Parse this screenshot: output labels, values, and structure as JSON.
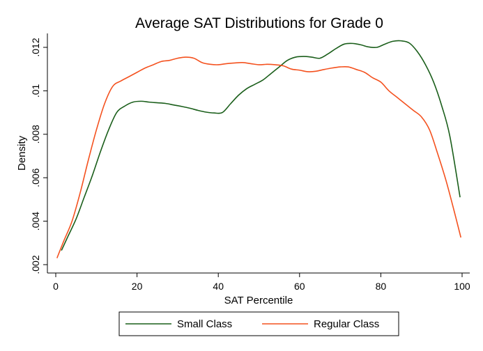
{
  "chart_data": {
    "type": "line",
    "title": "Average SAT Distributions for Grade 0",
    "xlabel": "SAT Percentile",
    "ylabel": "Density",
    "xlim": [
      0,
      100
    ],
    "ylim": [
      0.002,
      0.0123
    ],
    "xticks": [
      0,
      20,
      40,
      60,
      80,
      100
    ],
    "xtick_labels": [
      "0",
      "20",
      "40",
      "60",
      "80",
      "100"
    ],
    "yticks": [
      0.002,
      0.004,
      0.006,
      0.008,
      0.01,
      0.012
    ],
    "ytick_labels": [
      ".002",
      ".004",
      ".006",
      ".008",
      ".01",
      ".012"
    ],
    "grid": false,
    "legend_position": "bottom",
    "series": [
      {
        "name": "Small Class",
        "color": "#1a5e1a",
        "x": [
          1.4,
          3,
          5,
          7,
          9,
          11,
          13,
          15,
          17,
          19,
          21,
          23,
          25,
          27,
          29,
          31,
          33,
          35,
          37,
          39,
          41,
          43,
          45,
          47,
          49,
          51,
          53,
          55,
          57,
          59,
          61,
          63,
          65,
          67,
          69,
          71,
          73,
          75,
          77,
          79,
          81,
          83,
          85,
          87,
          89,
          91,
          93,
          95,
          97,
          99.5
        ],
        "values": [
          0.00265,
          0.0033,
          0.0041,
          0.0051,
          0.0061,
          0.0072,
          0.0082,
          0.009,
          0.0093,
          0.00948,
          0.00952,
          0.00948,
          0.00945,
          0.00942,
          0.00935,
          0.00928,
          0.0092,
          0.0091,
          0.00902,
          0.00898,
          0.009,
          0.0094,
          0.0098,
          0.0101,
          0.0103,
          0.0105,
          0.0108,
          0.0111,
          0.0114,
          0.01155,
          0.01158,
          0.01155,
          0.0115,
          0.0117,
          0.01195,
          0.01215,
          0.01218,
          0.01212,
          0.01202,
          0.012,
          0.01215,
          0.01228,
          0.0123,
          0.0122,
          0.0118,
          0.0112,
          0.0104,
          0.0093,
          0.0079,
          0.0051
        ]
      },
      {
        "name": "Regular Class",
        "color": "#f4511e",
        "x": [
          0.3,
          2,
          4,
          6,
          8,
          10,
          12,
          14,
          16,
          18,
          20,
          22,
          24,
          26,
          28,
          30,
          32,
          34,
          36,
          38,
          40,
          42,
          44,
          46,
          48,
          50,
          52,
          54,
          56,
          58,
          60,
          62,
          64,
          66,
          68,
          70,
          72,
          74,
          76,
          78,
          80,
          82,
          84,
          86,
          88,
          90,
          92,
          94,
          96,
          98,
          99.7
        ],
        "values": [
          0.0023,
          0.0031,
          0.004,
          0.0053,
          0.0068,
          0.0082,
          0.0094,
          0.0102,
          0.01045,
          0.01065,
          0.01085,
          0.01105,
          0.0112,
          0.01135,
          0.0114,
          0.0115,
          0.01155,
          0.0115,
          0.0113,
          0.01122,
          0.0112,
          0.01125,
          0.01128,
          0.0113,
          0.01125,
          0.0112,
          0.01122,
          0.0112,
          0.01115,
          0.011,
          0.01095,
          0.01088,
          0.0109,
          0.01098,
          0.01105,
          0.0111,
          0.0111,
          0.01098,
          0.01085,
          0.0106,
          0.0104,
          0.01,
          0.0097,
          0.0094,
          0.0091,
          0.0088,
          0.0082,
          0.0071,
          0.0059,
          0.0045,
          0.00325
        ]
      }
    ]
  }
}
